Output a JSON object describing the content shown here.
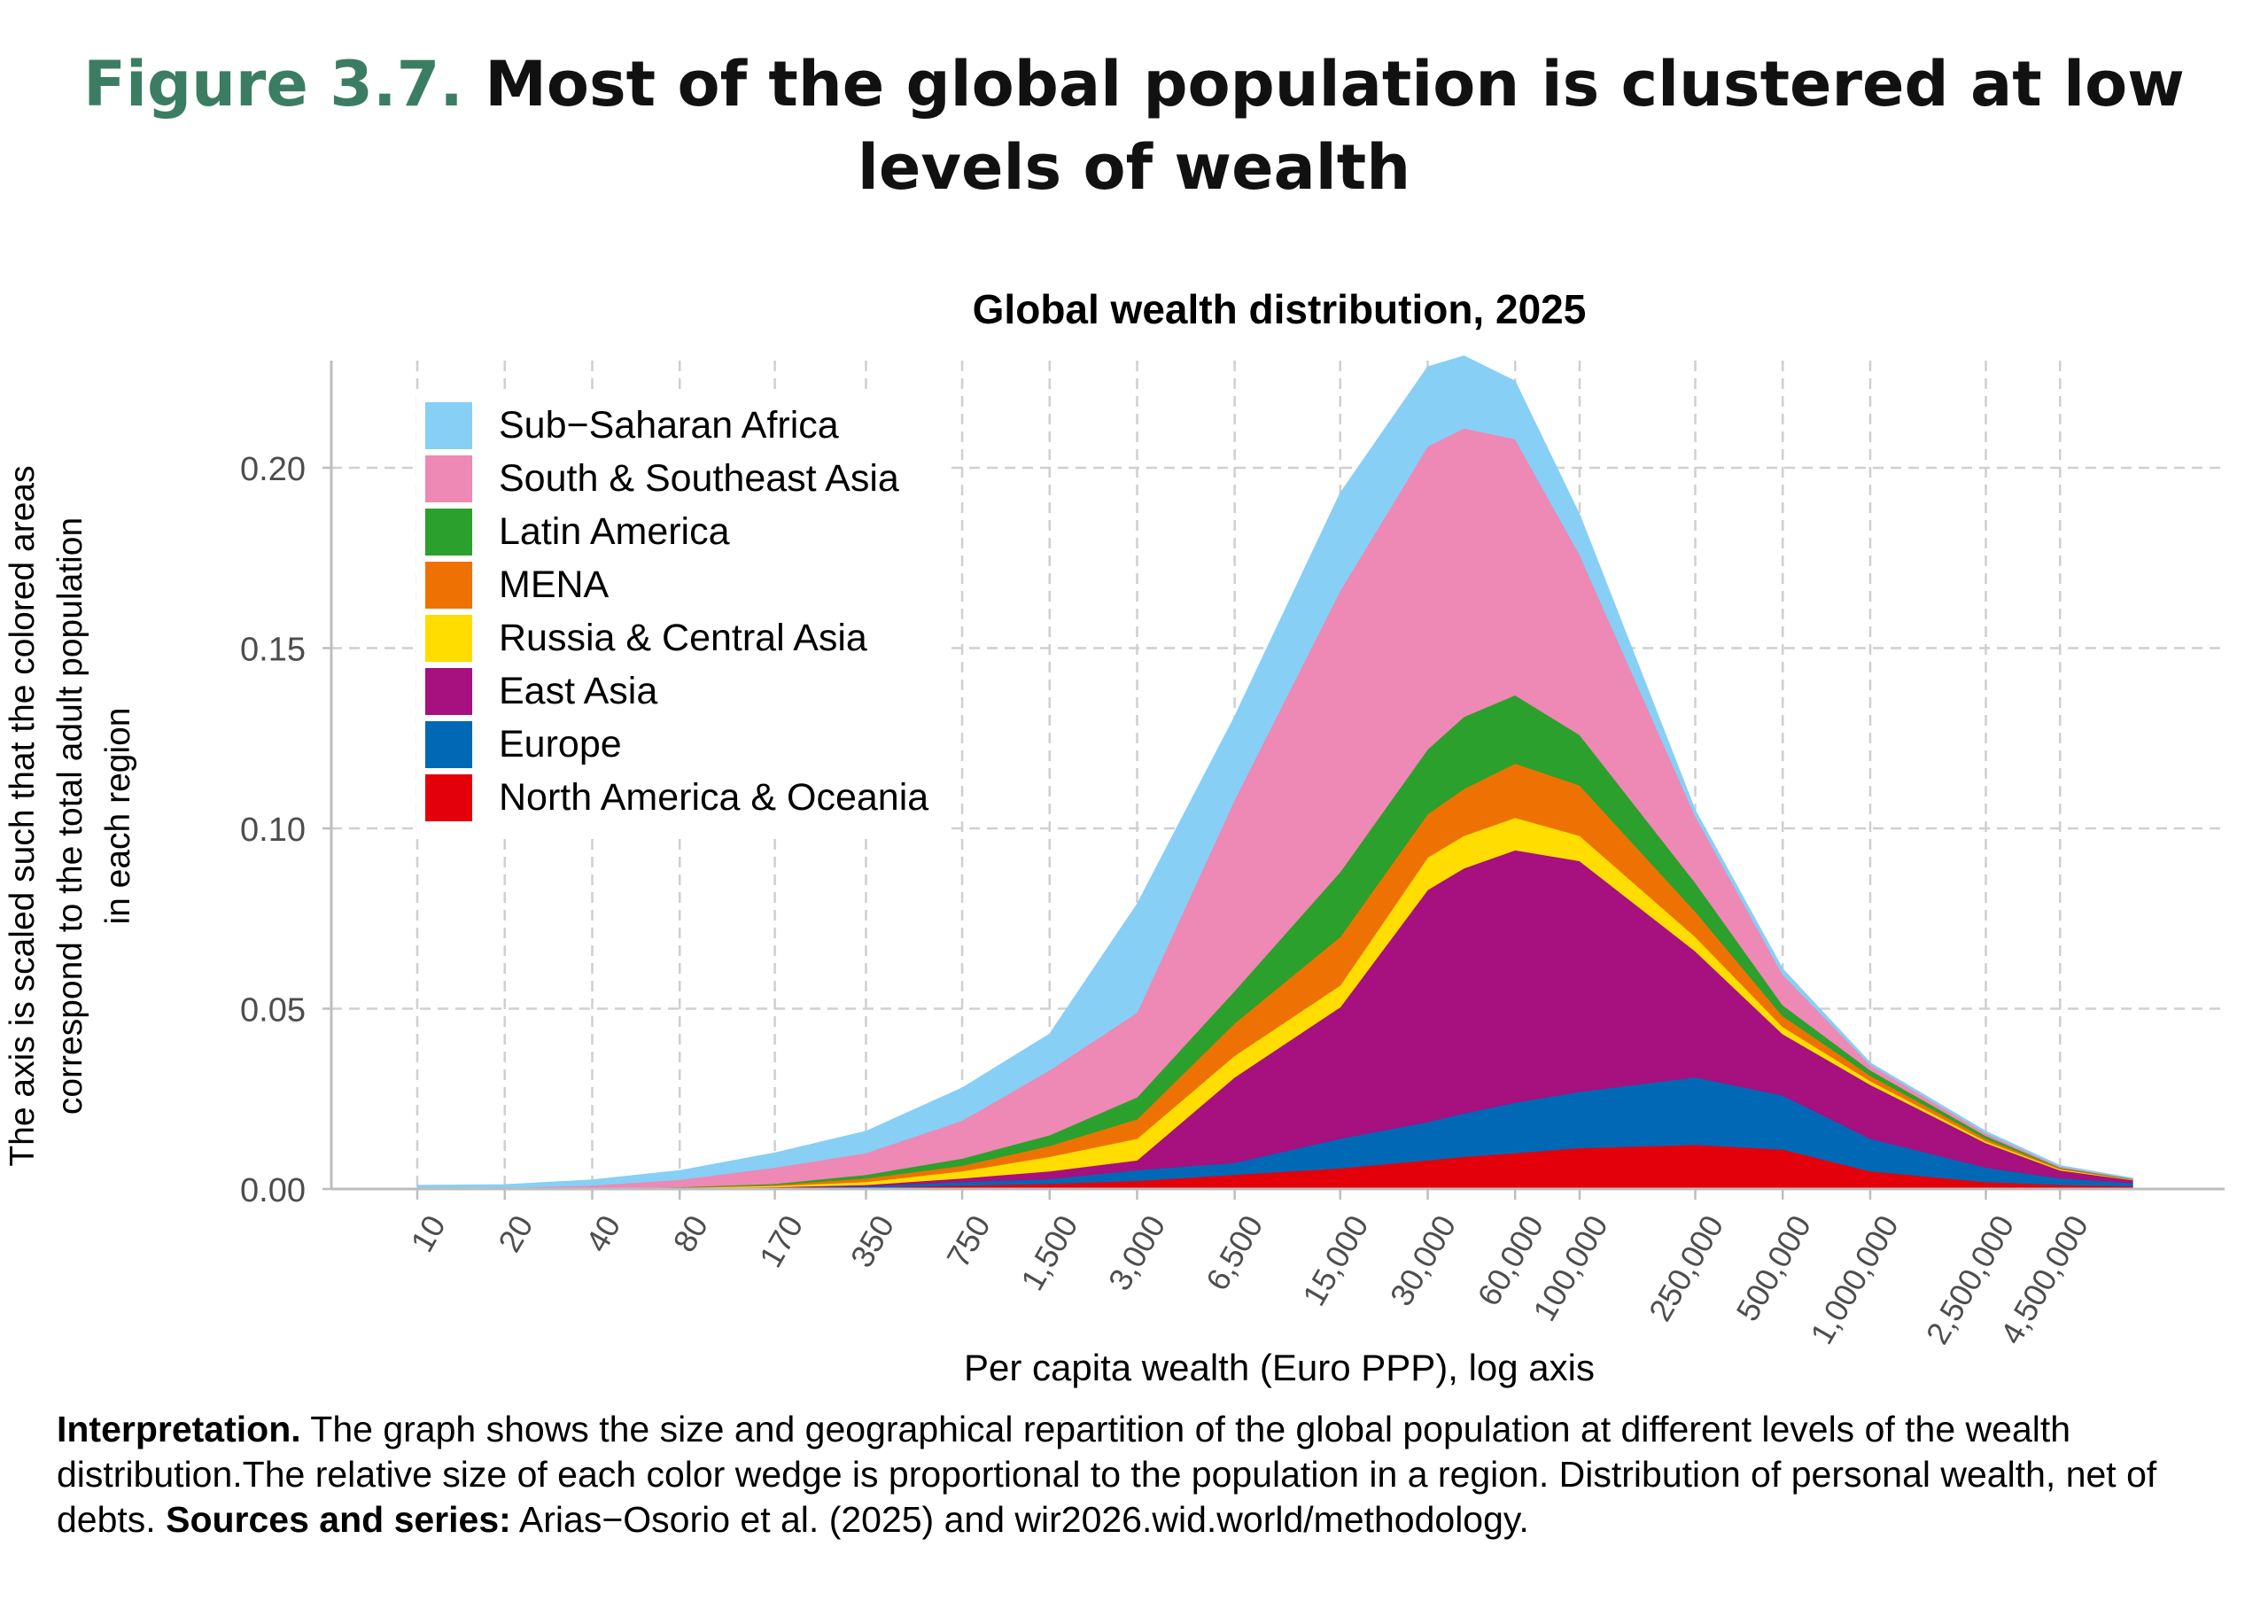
{
  "figure": {
    "number": "Figure 3.7.",
    "title": "Most of the global population is clustered at low levels of wealth"
  },
  "chart_data": {
    "type": "area",
    "stacked": true,
    "title": "Global wealth distribution, 2025",
    "xlabel": "Per capita wealth (Euro PPP), log axis",
    "ylabel": "The axis is scaled such that the colored areas correspond  to the total adult population in each region",
    "ylabel_lines": [
      "The axis is scaled such that the colored areas",
      "correspond  to the total adult population",
      "in each region"
    ],
    "x_scale": "log",
    "xlim": [
      10,
      8000000
    ],
    "ylim": [
      0,
      0.23
    ],
    "grid": true,
    "legend_position": "top-left",
    "x_ticks": [
      10,
      20,
      40,
      80,
      170,
      350,
      750,
      1500,
      3000,
      6500,
      15000,
      30000,
      60000,
      100000,
      250000,
      500000,
      1000000,
      2500000,
      4500000
    ],
    "x_tick_labels": [
      "10",
      "20",
      "40",
      "80",
      "170",
      "350",
      "750",
      "1,500",
      "3,000",
      "6,500",
      "15,000",
      "30,000",
      "60,000",
      "100,000",
      "250,000",
      "500,000",
      "1,000,000",
      "2,500,000",
      "4,500,000"
    ],
    "y_ticks": [
      0,
      0.05,
      0.1,
      0.15,
      0.2
    ],
    "y_tick_labels": [
      "0.00",
      "0.05",
      "0.10",
      "0.15",
      "0.20"
    ],
    "x": [
      10,
      20,
      40,
      80,
      170,
      350,
      750,
      1500,
      3000,
      6500,
      15000,
      30000,
      40000,
      60000,
      100000,
      250000,
      500000,
      1000000,
      2500000,
      4500000,
      8000000
    ],
    "series": [
      {
        "name": "North America & Oceania",
        "color": "#e3000b",
        "values": [
          0,
          0,
          0,
          0.0001,
          0.0002,
          0.0004,
          0.001,
          0.0015,
          0.0023,
          0.004,
          0.0058,
          0.008,
          0.009,
          0.01,
          0.0114,
          0.0123,
          0.011,
          0.005,
          0.002,
          0.0012,
          0.0008
        ]
      },
      {
        "name": "Europe",
        "color": "#0068b5",
        "values": [
          0,
          0,
          0,
          0.0001,
          0.0002,
          0.0004,
          0.001,
          0.0013,
          0.003,
          0.0033,
          0.0082,
          0.0106,
          0.012,
          0.014,
          0.0156,
          0.0187,
          0.015,
          0.009,
          0.004,
          0.0018,
          0.0009
        ]
      },
      {
        "name": "East Asia",
        "color": "#a6107f",
        "values": [
          0,
          0,
          0.0001,
          0.0001,
          0.0002,
          0.0004,
          0.001,
          0.0022,
          0.0027,
          0.0237,
          0.0365,
          0.0644,
          0.068,
          0.07,
          0.064,
          0.035,
          0.017,
          0.015,
          0.0068,
          0.0022,
          0.0008
        ]
      },
      {
        "name": "Russia & Central Asia",
        "color": "#ffdd00",
        "values": [
          0,
          0,
          0,
          0.0001,
          0.0003,
          0.0008,
          0.002,
          0.004,
          0.006,
          0.006,
          0.006,
          0.009,
          0.009,
          0.009,
          0.007,
          0.004,
          0.002,
          0.001,
          0.0005,
          0.0003,
          0.0001
        ]
      },
      {
        "name": "MENA",
        "color": "#ee7203",
        "values": [
          0,
          0,
          0,
          0.0001,
          0.0003,
          0.001,
          0.0015,
          0.003,
          0.0054,
          0.009,
          0.0135,
          0.012,
          0.013,
          0.015,
          0.014,
          0.007,
          0.003,
          0.0015,
          0.0007,
          0.0003,
          0.0001
        ]
      },
      {
        "name": "Latin America",
        "color": "#2ca02c",
        "values": [
          0,
          0.0001,
          0.0001,
          0.0001,
          0.0003,
          0.001,
          0.002,
          0.003,
          0.0061,
          0.009,
          0.018,
          0.018,
          0.02,
          0.019,
          0.014,
          0.008,
          0.003,
          0.0015,
          0.0008,
          0.0002,
          0.0001
        ]
      },
      {
        "name": "South & Southeast Asia",
        "color": "#ee88b4",
        "values": [
          0.0002,
          0.0003,
          0.0008,
          0.002,
          0.0045,
          0.006,
          0.0105,
          0.018,
          0.0235,
          0.053,
          0.078,
          0.084,
          0.08,
          0.071,
          0.05,
          0.0185,
          0.0085,
          0.0015,
          0.0007,
          0.0003,
          0.0001
        ]
      },
      {
        "name": "Sub−Saharan Africa",
        "color": "#87cff5",
        "values": [
          0.0008,
          0.0008,
          0.0015,
          0.0025,
          0.004,
          0.006,
          0.009,
          0.01,
          0.03,
          0.023,
          0.027,
          0.022,
          0.02,
          0.016,
          0.011,
          0.0015,
          0.0015,
          0.0005,
          0.0005,
          0.0002,
          0.0001
        ]
      }
    ],
    "legend_order": [
      "Sub−Saharan Africa",
      "South & Southeast Asia",
      "Latin America",
      "MENA",
      "Russia & Central Asia",
      "East Asia",
      "Europe",
      "North America & Oceania"
    ]
  },
  "note": {
    "interpretation_label": "Interpretation.",
    "interpretation_text": " The graph shows the size and geographical repartition of the global population at different levels of the wealth distribution.The relative size of each color wedge is proportional to the population in a region. Distribution of personal wealth, net of debts. ",
    "sources_label": "Sources and series:",
    "sources_text": " Arias−Osorio et al. (2025) and wir2026.wid.world/methodology."
  }
}
